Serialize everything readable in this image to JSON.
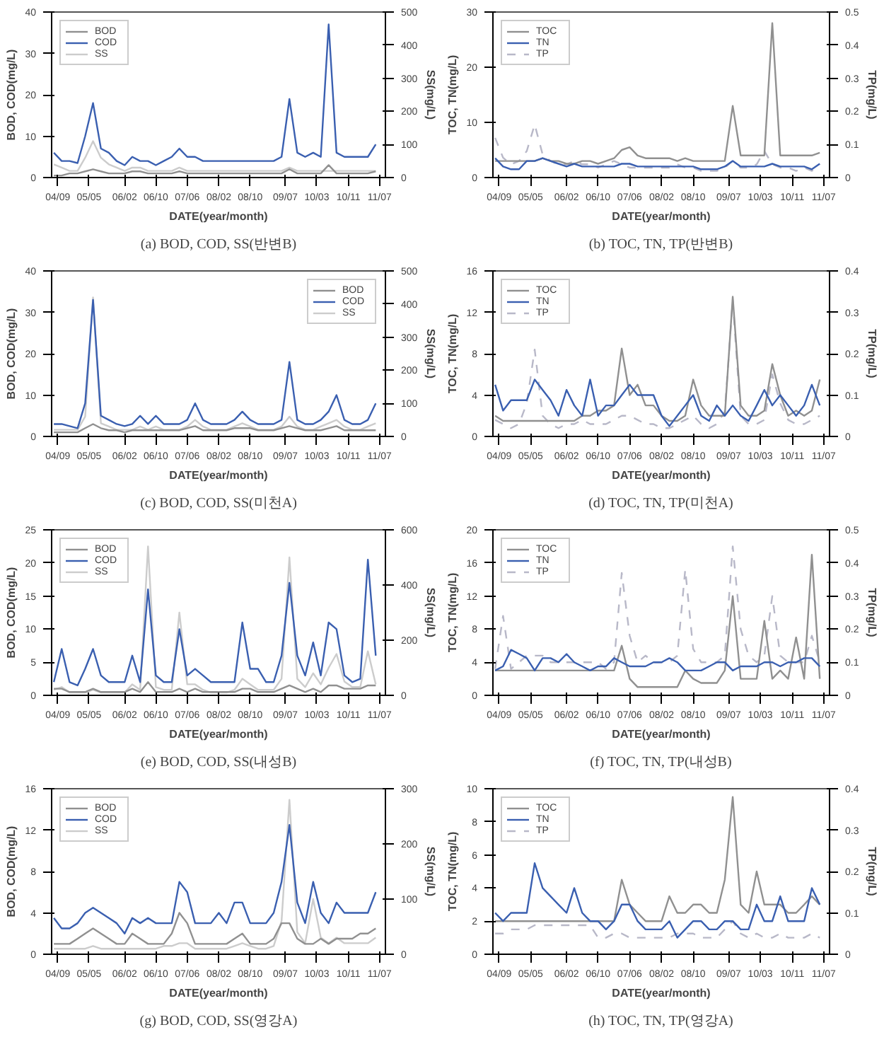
{
  "chart_data": [
    {
      "type": "line",
      "title": "(a) BOD, COD, SS(반변B)",
      "xlabel": "DATE(year/month)",
      "ylabel": "BOD, COD(mg/L)",
      "y2label": "SS(mg/L)",
      "legend": "top left",
      "x": [
        "2004-08",
        "2004-10",
        "2004-12",
        "2005-02",
        "2005-04",
        "2005-06",
        "2005-08",
        "2005-10",
        "2005-12",
        "2006-02",
        "2006-04",
        "2006-06",
        "2006-08",
        "2006-10",
        "2006-12",
        "2007-02",
        "2007-04",
        "2007-06",
        "2007-08",
        "2007-10",
        "2007-12",
        "2008-02",
        "2008-04",
        "2008-06",
        "2008-08",
        "2008-10",
        "2008-12",
        "2009-02",
        "2009-04",
        "2009-06",
        "2009-08",
        "2009-10",
        "2009-12",
        "2010-02",
        "2010-04",
        "2010-06",
        "2010-08",
        "2010-10",
        "2010-12",
        "2011-02",
        "2011-04",
        "2011-06"
      ],
      "xlim": [
        "2004-07-15",
        "2011-08-15"
      ],
      "xticks": [
        {
          "value": "2004-09",
          "label": "04/09"
        },
        {
          "value": "2005-05",
          "label": "05/05"
        },
        {
          "value": "2006-02",
          "label": "06/02"
        },
        {
          "value": "2006-10",
          "label": "06/10"
        },
        {
          "value": "2007-06",
          "label": "07/06"
        },
        {
          "value": "2008-02",
          "label": "08/02"
        },
        {
          "value": "2008-10",
          "label": "08/10"
        },
        {
          "value": "2009-07",
          "label": "09/07"
        },
        {
          "value": "2010-03",
          "label": "10/03"
        },
        {
          "value": "2010-11",
          "label": "10/11"
        },
        {
          "value": "2011-07",
          "label": "11/07"
        }
      ],
      "ylim": [
        0,
        40
      ],
      "yticks": [
        0,
        10,
        20,
        30,
        40
      ],
      "y2lim": [
        0,
        500
      ],
      "y2ticks": [
        0,
        100,
        200,
        300,
        400,
        500
      ],
      "series": [
        {
          "name": "BOD",
          "color": "#909090",
          "values": [
            0.5,
            0.5,
            1,
            1,
            1.5,
            2,
            1.5,
            1,
            1,
            1,
            1.5,
            1.5,
            1,
            1,
            1,
            1,
            1.5,
            1,
            1,
            1,
            1,
            1,
            1,
            1,
            1,
            1,
            1,
            1,
            1,
            1,
            2,
            1,
            1,
            1,
            1,
            3,
            1,
            1,
            1,
            1,
            1,
            1.5
          ]
        },
        {
          "name": "COD",
          "color": "#3a5fb0",
          "values": [
            6,
            4,
            4,
            3.5,
            10,
            18,
            7,
            6,
            4,
            3,
            5,
            4,
            4,
            3,
            4,
            5,
            7,
            5,
            5,
            4,
            4,
            4,
            4,
            4,
            4,
            4,
            4,
            4,
            4,
            5,
            19,
            6,
            5,
            6,
            5,
            37,
            6,
            5,
            5,
            5,
            5,
            8
          ]
        },
        {
          "name": "SS",
          "color": "#cccccc",
          "axis": "y2",
          "values": [
            40,
            30,
            20,
            20,
            60,
            110,
            60,
            40,
            30,
            20,
            30,
            30,
            20,
            20,
            20,
            20,
            30,
            20,
            20,
            20,
            20,
            20,
            20,
            20,
            20,
            20,
            20,
            20,
            20,
            20,
            30,
            20,
            20,
            20,
            20,
            20,
            20,
            20,
            20,
            20,
            20,
            20
          ]
        }
      ]
    },
    {
      "type": "line",
      "title": "(b) TOC, TN, TP(반변B)",
      "xlabel": "DATE(year/month)",
      "ylabel": "TOC, TN(mg/L)",
      "y2label": "TP(mg/L)",
      "legend": "top left",
      "x": [
        "2004-08",
        "2004-10",
        "2004-12",
        "2005-02",
        "2005-04",
        "2005-06",
        "2005-08",
        "2005-10",
        "2005-12",
        "2006-02",
        "2006-04",
        "2006-06",
        "2006-08",
        "2006-10",
        "2006-12",
        "2007-02",
        "2007-04",
        "2007-06",
        "2007-08",
        "2007-10",
        "2007-12",
        "2008-02",
        "2008-04",
        "2008-06",
        "2008-08",
        "2008-10",
        "2008-12",
        "2009-02",
        "2009-04",
        "2009-06",
        "2009-08",
        "2009-10",
        "2009-12",
        "2010-02",
        "2010-04",
        "2010-06",
        "2010-08",
        "2010-10",
        "2010-12",
        "2011-02",
        "2011-04",
        "2011-06"
      ],
      "xlim": [
        "2004-07-15",
        "2011-08-15"
      ],
      "xticks": [
        {
          "value": "2004-09",
          "label": "04/09"
        },
        {
          "value": "2005-05",
          "label": "05/05"
        },
        {
          "value": "2006-02",
          "label": "06/02"
        },
        {
          "value": "2006-10",
          "label": "06/10"
        },
        {
          "value": "2007-06",
          "label": "07/06"
        },
        {
          "value": "2008-02",
          "label": "08/02"
        },
        {
          "value": "2008-10",
          "label": "08/10"
        },
        {
          "value": "2009-07",
          "label": "09/07"
        },
        {
          "value": "2010-03",
          "label": "10/03"
        },
        {
          "value": "2010-11",
          "label": "10/11"
        },
        {
          "value": "2011-07",
          "label": "11/07"
        }
      ],
      "ylim": [
        0,
        30
      ],
      "yticks": [
        0,
        10,
        20,
        30
      ],
      "y2lim": [
        0,
        0.5
      ],
      "y2ticks": [
        0,
        0.1,
        0.2,
        0.3,
        0.4,
        0.5
      ],
      "series": [
        {
          "name": "TOC",
          "color": "#909090",
          "values": [
            3,
            3,
            3,
            3,
            3,
            3,
            3.5,
            3,
            3,
            2.5,
            2.5,
            3,
            3,
            2.5,
            3,
            3.5,
            5,
            5.5,
            4,
            3.5,
            3.5,
            3.5,
            3.5,
            3,
            3.5,
            3,
            3,
            3,
            3,
            3,
            13,
            4,
            4,
            4,
            4,
            28,
            4,
            4,
            4,
            4,
            4,
            4.5
          ]
        },
        {
          "name": "TN",
          "color": "#3a5fb0",
          "values": [
            3.5,
            2,
            1.5,
            1.5,
            3,
            3,
            3.5,
            3,
            2.5,
            2,
            2.5,
            2,
            2,
            2,
            2,
            2,
            2.5,
            2.5,
            2,
            2,
            2,
            2,
            2,
            2,
            2,
            2,
            1.5,
            1.5,
            1.5,
            2,
            3,
            2,
            2,
            2,
            2,
            2.5,
            2,
            2,
            2,
            2,
            1.5,
            2.5
          ]
        },
        {
          "name": "TP",
          "color": "#b8b8c8",
          "axis": "y2",
          "line_style": "dashed",
          "values": [
            0.12,
            0.06,
            0.04,
            0.05,
            0.08,
            0.16,
            0.07,
            0.05,
            0.04,
            0.04,
            0.05,
            0.04,
            0.04,
            0.03,
            0.04,
            0.05,
            0.04,
            0.03,
            0.03,
            0.03,
            0.03,
            0.03,
            0.03,
            0.04,
            0.03,
            0.03,
            0.02,
            0.02,
            0.02,
            0.03,
            0.05,
            0.03,
            0.03,
            0.04,
            0.08,
            0.04,
            0.03,
            0.03,
            0.02,
            0.03,
            0.02,
            0.04
          ]
        }
      ]
    },
    {
      "type": "line",
      "title": "(c) BOD, COD, SS(미천A)",
      "xlabel": "DATE(year/month)",
      "ylabel": "BOD, COD(mg/L)",
      "y2label": "SS(mg/L)",
      "legend": "top right",
      "x": [
        "2004-08",
        "2004-10",
        "2004-12",
        "2005-02",
        "2005-04",
        "2005-06",
        "2005-08",
        "2005-10",
        "2005-12",
        "2006-02",
        "2006-04",
        "2006-06",
        "2006-08",
        "2006-10",
        "2006-12",
        "2007-02",
        "2007-04",
        "2007-06",
        "2007-08",
        "2007-10",
        "2007-12",
        "2008-02",
        "2008-04",
        "2008-06",
        "2008-08",
        "2008-10",
        "2008-12",
        "2009-02",
        "2009-04",
        "2009-06",
        "2009-08",
        "2009-10",
        "2009-12",
        "2010-02",
        "2010-04",
        "2010-06",
        "2010-08",
        "2010-10",
        "2010-12",
        "2011-02",
        "2011-04",
        "2011-06"
      ],
      "xlim": [
        "2004-07-15",
        "2011-08-15"
      ],
      "xticks": [
        {
          "value": "2004-09",
          "label": "04/09"
        },
        {
          "value": "2005-05",
          "label": "05/05"
        },
        {
          "value": "2006-02",
          "label": "06/02"
        },
        {
          "value": "2006-10",
          "label": "06/10"
        },
        {
          "value": "2007-06",
          "label": "07/06"
        },
        {
          "value": "2008-02",
          "label": "08/02"
        },
        {
          "value": "2008-10",
          "label": "08/10"
        },
        {
          "value": "2009-07",
          "label": "09/07"
        },
        {
          "value": "2010-03",
          "label": "10/03"
        },
        {
          "value": "2010-11",
          "label": "10/11"
        },
        {
          "value": "2011-07",
          "label": "11/07"
        }
      ],
      "ylim": [
        0,
        40
      ],
      "yticks": [
        0,
        10,
        20,
        30,
        40
      ],
      "y2lim": [
        0,
        500
      ],
      "y2ticks": [
        0,
        100,
        200,
        300,
        400,
        500
      ],
      "series": [
        {
          "name": "BOD",
          "color": "#909090",
          "values": [
            1,
            1,
            1,
            1,
            2,
            3,
            2,
            1.5,
            1.5,
            1,
            1.5,
            1.5,
            1.5,
            1.5,
            1.5,
            1.5,
            1.5,
            2,
            2.5,
            1.5,
            1.5,
            1.5,
            1.5,
            2,
            2,
            2,
            1.5,
            1.5,
            1.5,
            2,
            2.5,
            2,
            1.5,
            1.5,
            1.5,
            2,
            2.5,
            1.5,
            1.5,
            1.5,
            1.5,
            1.5
          ]
        },
        {
          "name": "COD",
          "color": "#3a5fb0",
          "values": [
            3,
            3,
            2.5,
            2,
            8,
            33,
            5,
            4,
            3,
            2.5,
            3,
            5,
            3,
            5,
            3,
            3,
            3,
            4,
            8,
            4,
            3,
            3,
            3,
            4,
            6,
            4,
            3,
            3,
            3,
            4,
            18,
            4,
            3,
            3,
            4,
            6,
            10,
            4,
            3,
            3,
            4,
            8
          ]
        },
        {
          "name": "SS",
          "color": "#cccccc",
          "axis": "y2",
          "values": [
            20,
            20,
            20,
            20,
            60,
            420,
            40,
            30,
            20,
            20,
            20,
            30,
            20,
            30,
            20,
            20,
            20,
            30,
            50,
            30,
            20,
            20,
            20,
            30,
            40,
            30,
            20,
            20,
            20,
            30,
            60,
            30,
            20,
            20,
            30,
            40,
            50,
            30,
            20,
            20,
            30,
            40
          ]
        }
      ]
    },
    {
      "type": "line",
      "title": "(d) TOC, TN, TP(미천A)",
      "xlabel": "DATE(year/month)",
      "ylabel": "TOC, TN(mg/L)",
      "y2label": "TP(mg/L)",
      "legend": "top left",
      "x": [
        "2004-08",
        "2004-10",
        "2004-12",
        "2005-02",
        "2005-04",
        "2005-06",
        "2005-08",
        "2005-10",
        "2005-12",
        "2006-02",
        "2006-04",
        "2006-06",
        "2006-08",
        "2006-10",
        "2006-12",
        "2007-02",
        "2007-04",
        "2007-06",
        "2007-08",
        "2007-10",
        "2007-12",
        "2008-02",
        "2008-04",
        "2008-06",
        "2008-08",
        "2008-10",
        "2008-12",
        "2009-02",
        "2009-04",
        "2009-06",
        "2009-08",
        "2009-10",
        "2009-12",
        "2010-02",
        "2010-04",
        "2010-06",
        "2010-08",
        "2010-10",
        "2010-12",
        "2011-02",
        "2011-04",
        "2011-06"
      ],
      "xlim": [
        "2004-07-15",
        "2011-08-15"
      ],
      "xticks": [
        {
          "value": "2004-09",
          "label": "04/09"
        },
        {
          "value": "2005-05",
          "label": "05/05"
        },
        {
          "value": "2006-02",
          "label": "06/02"
        },
        {
          "value": "2006-10",
          "label": "06/10"
        },
        {
          "value": "2007-06",
          "label": "07/06"
        },
        {
          "value": "2008-02",
          "label": "08/02"
        },
        {
          "value": "2008-10",
          "label": "08/10"
        },
        {
          "value": "2009-07",
          "label": "09/07"
        },
        {
          "value": "2010-03",
          "label": "10/03"
        },
        {
          "value": "2010-11",
          "label": "10/11"
        },
        {
          "value": "2011-07",
          "label": "11/07"
        }
      ],
      "ylim": [
        0,
        16
      ],
      "yticks": [
        0,
        4,
        8,
        12,
        16
      ],
      "y2lim": [
        0,
        0.4
      ],
      "y2ticks": [
        0,
        0.1,
        0.2,
        0.3,
        0.4
      ],
      "series": [
        {
          "name": "TOC",
          "color": "#909090",
          "values": [
            2,
            1.5,
            1.5,
            1.5,
            1.5,
            1.5,
            1.5,
            1.5,
            1.5,
            1.5,
            1.5,
            2,
            2,
            2.5,
            2.5,
            3,
            8.5,
            4,
            5,
            3,
            3,
            2,
            1.5,
            1.5,
            2,
            5.5,
            3,
            2,
            2,
            2,
            13.5,
            3,
            2,
            2,
            2.5,
            7,
            4,
            2,
            2.5,
            2,
            2.5,
            5.5
          ]
        },
        {
          "name": "TN",
          "color": "#3a5fb0",
          "values": [
            5,
            2.5,
            3.5,
            3.5,
            3.5,
            5.5,
            4.5,
            3.5,
            2,
            4.5,
            3,
            2,
            5.5,
            2,
            3,
            3,
            4,
            5,
            4,
            4,
            4,
            2,
            1,
            2,
            3,
            4,
            2,
            1.5,
            3,
            2,
            3,
            2,
            1.5,
            3,
            4.5,
            3,
            4,
            3,
            2,
            3,
            5,
            3
          ]
        },
        {
          "name": "TP",
          "color": "#b8b8c8",
          "axis": "y2",
          "line_style": "dashed",
          "values": [
            0.04,
            0.03,
            0.02,
            0.03,
            0.08,
            0.21,
            0.05,
            0.03,
            0.02,
            0.03,
            0.03,
            0.04,
            0.03,
            0.03,
            0.03,
            0.04,
            0.05,
            0.05,
            0.04,
            0.03,
            0.03,
            0.02,
            0.02,
            0.03,
            0.04,
            0.05,
            0.03,
            0.02,
            0.03,
            0.06,
            0.33,
            0.05,
            0.03,
            0.03,
            0.04,
            0.15,
            0.08,
            0.04,
            0.03,
            0.03,
            0.04,
            0.05
          ]
        }
      ]
    },
    {
      "type": "line",
      "title": "(e) BOD, COD, SS(내성B)",
      "xlabel": "DATE(year/month)",
      "ylabel": "BOD, COD(mg/L)",
      "y2label": "SS(mg/L)",
      "legend": "top left",
      "x": [
        "2004-08",
        "2004-10",
        "2004-12",
        "2005-02",
        "2005-04",
        "2005-06",
        "2005-08",
        "2005-10",
        "2005-12",
        "2006-02",
        "2006-04",
        "2006-06",
        "2006-08",
        "2006-10",
        "2006-12",
        "2007-02",
        "2007-04",
        "2007-06",
        "2007-08",
        "2007-10",
        "2007-12",
        "2008-02",
        "2008-04",
        "2008-06",
        "2008-08",
        "2008-10",
        "2008-12",
        "2009-02",
        "2009-04",
        "2009-06",
        "2009-08",
        "2009-10",
        "2009-12",
        "2010-02",
        "2010-04",
        "2010-06",
        "2010-08",
        "2010-10",
        "2010-12",
        "2011-02",
        "2011-04",
        "2011-06"
      ],
      "xlim": [
        "2004-07-15",
        "2011-08-15"
      ],
      "xticks": [
        {
          "value": "2004-09",
          "label": "04/09"
        },
        {
          "value": "2005-05",
          "label": "05/05"
        },
        {
          "value": "2006-02",
          "label": "06/02"
        },
        {
          "value": "2006-10",
          "label": "06/10"
        },
        {
          "value": "2007-06",
          "label": "07/06"
        },
        {
          "value": "2008-02",
          "label": "08/02"
        },
        {
          "value": "2008-10",
          "label": "08/10"
        },
        {
          "value": "2009-07",
          "label": "09/07"
        },
        {
          "value": "2010-03",
          "label": "10/03"
        },
        {
          "value": "2010-11",
          "label": "10/11"
        },
        {
          "value": "2011-07",
          "label": "11/07"
        }
      ],
      "ylim": [
        0,
        25
      ],
      "yticks": [
        0,
        5,
        10,
        15,
        20,
        25
      ],
      "y2lim": [
        0,
        600
      ],
      "y2ticks": [
        0,
        200,
        400,
        600
      ],
      "series": [
        {
          "name": "BOD",
          "color": "#909090",
          "values": [
            1,
            1,
            0.5,
            0.5,
            0.5,
            1,
            0.5,
            0.5,
            0.5,
            0.5,
            1,
            0.5,
            2,
            0.5,
            0.5,
            0.5,
            1,
            0.5,
            1,
            0.5,
            0.5,
            0.5,
            0.5,
            0.5,
            1,
            1,
            0.5,
            0.5,
            0.5,
            1,
            1.5,
            1,
            0.5,
            1,
            0.5,
            1.5,
            1.5,
            1,
            1,
            1,
            1.5,
            1.5
          ]
        },
        {
          "name": "COD",
          "color": "#3a5fb0",
          "values": [
            2,
            7,
            2,
            1.5,
            4,
            7,
            3,
            2,
            2,
            2,
            6,
            2,
            16,
            3,
            2,
            2,
            10,
            3,
            4,
            3,
            2,
            2,
            2,
            2,
            11,
            4,
            4,
            2,
            2,
            6,
            17,
            6,
            3,
            8,
            3,
            11,
            10,
            3,
            2,
            2.5,
            20.5,
            6
          ]
        },
        {
          "name": "SS",
          "color": "#cccccc",
          "axis": "y2",
          "values": [
            20,
            30,
            10,
            10,
            10,
            20,
            10,
            10,
            10,
            10,
            40,
            20,
            540,
            30,
            20,
            20,
            300,
            40,
            40,
            20,
            10,
            10,
            10,
            20,
            60,
            40,
            20,
            20,
            20,
            60,
            500,
            60,
            30,
            80,
            40,
            100,
            150,
            50,
            30,
            30,
            160,
            40
          ]
        }
      ]
    },
    {
      "type": "line",
      "title": "(f) TOC, TN, TP(내성B)",
      "xlabel": "DATE(year/month)",
      "ylabel": "TOC, TN(mg/L)",
      "y2label": "TP(mg/L)",
      "legend": "top left",
      "x": [
        "2004-08",
        "2004-10",
        "2004-12",
        "2005-02",
        "2005-04",
        "2005-06",
        "2005-08",
        "2005-10",
        "2005-12",
        "2006-02",
        "2006-04",
        "2006-06",
        "2006-08",
        "2006-10",
        "2006-12",
        "2007-02",
        "2007-04",
        "2007-06",
        "2007-08",
        "2007-10",
        "2007-12",
        "2008-02",
        "2008-04",
        "2008-06",
        "2008-08",
        "2008-10",
        "2008-12",
        "2009-02",
        "2009-04",
        "2009-06",
        "2009-08",
        "2009-10",
        "2009-12",
        "2010-02",
        "2010-04",
        "2010-06",
        "2010-08",
        "2010-10",
        "2010-12",
        "2011-02",
        "2011-04",
        "2011-06"
      ],
      "xlim": [
        "2004-07-15",
        "2011-08-15"
      ],
      "xticks": [
        {
          "value": "2004-09",
          "label": "04/09"
        },
        {
          "value": "2005-05",
          "label": "05/05"
        },
        {
          "value": "2006-02",
          "label": "06/02"
        },
        {
          "value": "2006-10",
          "label": "06/10"
        },
        {
          "value": "2007-06",
          "label": "07/06"
        },
        {
          "value": "2008-02",
          "label": "08/02"
        },
        {
          "value": "2008-10",
          "label": "08/10"
        },
        {
          "value": "2009-07",
          "label": "09/07"
        },
        {
          "value": "2010-03",
          "label": "10/03"
        },
        {
          "value": "2010-11",
          "label": "10/11"
        },
        {
          "value": "2011-07",
          "label": "11/07"
        }
      ],
      "ylim": [
        0,
        20
      ],
      "yticks": [
        0,
        4,
        8,
        12,
        16,
        20
      ],
      "y2lim": [
        0,
        0.5
      ],
      "y2ticks": [
        0,
        0.1,
        0.2,
        0.3,
        0.4,
        0.5
      ],
      "series": [
        {
          "name": "TOC",
          "color": "#909090",
          "values": [
            3,
            3,
            3,
            3,
            3,
            3,
            3,
            3,
            3,
            3,
            3,
            3,
            3,
            3,
            3,
            3,
            6,
            2,
            1,
            1,
            1,
            1,
            1,
            1,
            3,
            2,
            1.5,
            1.5,
            1.5,
            3,
            12,
            2,
            2,
            2,
            9,
            2,
            3,
            2,
            7,
            2,
            17,
            2
          ]
        },
        {
          "name": "TN",
          "color": "#3a5fb0",
          "values": [
            3,
            3.5,
            5.5,
            5,
            4.5,
            3,
            4.5,
            4.5,
            4,
            5,
            4,
            3.5,
            3,
            3.5,
            3.5,
            4.5,
            4,
            3.5,
            3.5,
            3.5,
            4,
            4,
            4.5,
            4,
            3,
            3,
            3,
            3.5,
            4,
            4,
            3,
            3.5,
            3.5,
            3.5,
            4,
            4,
            3.5,
            4,
            4,
            4.5,
            4.5,
            3.5
          ]
        },
        {
          "name": "TP",
          "color": "#b8b8c8",
          "axis": "y2",
          "line_style": "dashed",
          "values": [
            0.08,
            0.24,
            0.08,
            0.1,
            0.12,
            0.12,
            0.12,
            0.1,
            0.1,
            0.1,
            0.1,
            0.1,
            0.1,
            0.1,
            0.08,
            0.1,
            0.37,
            0.18,
            0.1,
            0.12,
            0.1,
            0.1,
            0.1,
            0.12,
            0.38,
            0.14,
            0.1,
            0.1,
            0.1,
            0.12,
            0.45,
            0.2,
            0.12,
            0.1,
            0.12,
            0.3,
            0.12,
            0.1,
            0.1,
            0.1,
            0.18,
            0.1
          ]
        }
      ]
    },
    {
      "type": "line",
      "title": "(g) BOD, COD, SS(영강A)",
      "xlabel": "DATE(year/month)",
      "ylabel": "BOD, COD(mg/L)",
      "y2label": "SS(mg/L)",
      "legend": "top left",
      "x": [
        "2004-08",
        "2004-10",
        "2004-12",
        "2005-02",
        "2005-04",
        "2005-06",
        "2005-08",
        "2005-10",
        "2005-12",
        "2006-02",
        "2006-04",
        "2006-06",
        "2006-08",
        "2006-10",
        "2006-12",
        "2007-02",
        "2007-04",
        "2007-06",
        "2007-08",
        "2007-10",
        "2007-12",
        "2008-02",
        "2008-04",
        "2008-06",
        "2008-08",
        "2008-10",
        "2008-12",
        "2009-02",
        "2009-04",
        "2009-06",
        "2009-08",
        "2009-10",
        "2009-12",
        "2010-02",
        "2010-04",
        "2010-06",
        "2010-08",
        "2010-10",
        "2010-12",
        "2011-02",
        "2011-04",
        "2011-06"
      ],
      "xlim": [
        "2004-07-15",
        "2011-08-15"
      ],
      "xticks": [
        {
          "value": "2004-09",
          "label": "04/09"
        },
        {
          "value": "2005-05",
          "label": "05/05"
        },
        {
          "value": "2006-02",
          "label": "06/02"
        },
        {
          "value": "2006-10",
          "label": "06/10"
        },
        {
          "value": "2007-06",
          "label": "07/06"
        },
        {
          "value": "2008-02",
          "label": "08/02"
        },
        {
          "value": "2008-10",
          "label": "08/10"
        },
        {
          "value": "2009-07",
          "label": "09/07"
        },
        {
          "value": "2010-03",
          "label": "10/03"
        },
        {
          "value": "2010-11",
          "label": "10/11"
        },
        {
          "value": "2011-07",
          "label": "11/07"
        }
      ],
      "ylim": [
        0,
        16
      ],
      "yticks": [
        0,
        4,
        8,
        12,
        16
      ],
      "y2lim": [
        0,
        300
      ],
      "y2ticks": [
        0,
        100,
        200,
        300
      ],
      "series": [
        {
          "name": "BOD",
          "color": "#909090",
          "values": [
            1,
            1,
            1,
            1.5,
            2,
            2.5,
            2,
            1.5,
            1,
            1,
            2,
            1.5,
            1,
            1,
            1,
            2,
            4,
            3,
            1,
            1,
            1,
            1,
            1,
            1.5,
            2,
            1,
            1,
            1,
            1.5,
            3,
            3,
            1.5,
            1,
            1,
            1.5,
            1,
            1.5,
            1.5,
            1.5,
            2,
            2,
            2.5
          ]
        },
        {
          "name": "COD",
          "color": "#3a5fb0",
          "values": [
            3.5,
            2.5,
            2.5,
            3,
            4,
            4.5,
            4,
            3.5,
            3,
            2,
            3.5,
            3,
            3.5,
            3,
            3,
            3,
            7,
            6,
            3,
            3,
            3,
            4,
            3,
            5,
            5,
            3,
            3,
            3,
            4,
            7,
            12.5,
            5,
            3,
            7,
            4,
            3,
            5,
            4,
            4,
            4,
            4,
            6
          ]
        },
        {
          "name": "SS",
          "color": "#cccccc",
          "axis": "y2",
          "values": [
            10,
            10,
            10,
            10,
            10,
            15,
            10,
            10,
            10,
            10,
            10,
            10,
            10,
            10,
            15,
            15,
            20,
            20,
            10,
            10,
            10,
            10,
            10,
            15,
            20,
            15,
            10,
            10,
            15,
            60,
            280,
            40,
            20,
            100,
            30,
            20,
            30,
            20,
            20,
            20,
            20,
            30
          ]
        }
      ]
    },
    {
      "type": "line",
      "title": "(h) TOC, TN, TP(영강A)",
      "xlabel": "DATE(year/month)",
      "ylabel": "TOC, TN(mg/L)",
      "y2label": "TP(mg/L)",
      "legend": "top left",
      "x": [
        "2004-08",
        "2004-10",
        "2004-12",
        "2005-02",
        "2005-04",
        "2005-06",
        "2005-08",
        "2005-10",
        "2005-12",
        "2006-02",
        "2006-04",
        "2006-06",
        "2006-08",
        "2006-10",
        "2006-12",
        "2007-02",
        "2007-04",
        "2007-06",
        "2007-08",
        "2007-10",
        "2007-12",
        "2008-02",
        "2008-04",
        "2008-06",
        "2008-08",
        "2008-10",
        "2008-12",
        "2009-02",
        "2009-04",
        "2009-06",
        "2009-08",
        "2009-10",
        "2009-12",
        "2010-02",
        "2010-04",
        "2010-06",
        "2010-08",
        "2010-10",
        "2010-12",
        "2011-02",
        "2011-04",
        "2011-06"
      ],
      "xlim": [
        "2004-07-15",
        "2011-08-15"
      ],
      "xticks": [
        {
          "value": "2004-09",
          "label": "04/09"
        },
        {
          "value": "2005-05",
          "label": "05/05"
        },
        {
          "value": "2006-02",
          "label": "06/02"
        },
        {
          "value": "2006-10",
          "label": "06/10"
        },
        {
          "value": "2007-06",
          "label": "07/06"
        },
        {
          "value": "2008-02",
          "label": "08/02"
        },
        {
          "value": "2008-10",
          "label": "08/10"
        },
        {
          "value": "2009-07",
          "label": "09/07"
        },
        {
          "value": "2010-03",
          "label": "10/03"
        },
        {
          "value": "2010-11",
          "label": "10/11"
        },
        {
          "value": "2011-07",
          "label": "11/07"
        }
      ],
      "ylim": [
        0,
        10
      ],
      "yticks": [
        0,
        2,
        4,
        6,
        8,
        10
      ],
      "y2lim": [
        0,
        0.4
      ],
      "y2ticks": [
        0,
        0.1,
        0.2,
        0.3,
        0.4
      ],
      "series": [
        {
          "name": "TOC",
          "color": "#909090",
          "values": [
            2,
            2,
            2,
            2,
            2,
            2,
            2,
            2,
            2,
            2,
            2,
            2,
            2,
            2,
            2,
            2,
            4.5,
            3,
            2.5,
            2,
            2,
            2,
            3.5,
            2.5,
            2.5,
            3,
            3,
            2.5,
            2.5,
            4.5,
            9.5,
            3,
            2.5,
            5,
            3,
            3,
            3,
            2.5,
            2.5,
            3,
            3.5,
            3
          ]
        },
        {
          "name": "TN",
          "color": "#3a5fb0",
          "values": [
            2.5,
            2,
            2.5,
            2.5,
            2.5,
            5.5,
            4,
            3.5,
            3,
            2.5,
            4,
            2.5,
            2,
            2,
            1.5,
            2,
            3,
            3,
            2,
            1.5,
            1.5,
            1.5,
            2,
            1,
            1.5,
            2,
            2,
            1.5,
            1.5,
            2,
            2,
            1.5,
            1.5,
            3,
            2,
            2,
            3.5,
            2,
            2,
            2,
            4,
            3
          ]
        },
        {
          "name": "TP",
          "color": "#b8b8c8",
          "axis": "y2",
          "line_style": "dashed",
          "values": [
            0.05,
            0.05,
            0.06,
            0.06,
            0.06,
            0.07,
            0.07,
            0.07,
            0.07,
            0.07,
            0.07,
            0.07,
            0.07,
            0.04,
            0.04,
            0.05,
            0.05,
            0.04,
            0.04,
            0.04,
            0.04,
            0.04,
            0.04,
            0.05,
            0.05,
            0.05,
            0.04,
            0.04,
            0.04,
            0.06,
            0.08,
            0.05,
            0.04,
            0.05,
            0.04,
            0.04,
            0.05,
            0.04,
            0.04,
            0.04,
            0.05,
            0.04
          ]
        }
      ]
    }
  ]
}
